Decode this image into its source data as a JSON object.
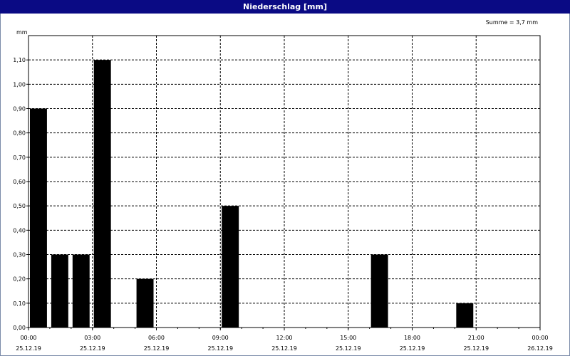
{
  "window": {
    "title": "Niederschlag [mm]"
  },
  "chart_data": {
    "type": "bar",
    "title": "Niederschlag [mm]",
    "ylabel": "mm",
    "annotation": "Summe = 3,7 mm",
    "ylim": [
      0,
      1.2
    ],
    "y_ticks": [
      {
        "value": 0.0,
        "label": "0,00"
      },
      {
        "value": 0.1,
        "label": "0,10"
      },
      {
        "value": 0.2,
        "label": "0,20"
      },
      {
        "value": 0.3,
        "label": "0,30"
      },
      {
        "value": 0.4,
        "label": "0,40"
      },
      {
        "value": 0.5,
        "label": "0,50"
      },
      {
        "value": 0.6,
        "label": "0,60"
      },
      {
        "value": 0.7,
        "label": "0,70"
      },
      {
        "value": 0.8,
        "label": "0,80"
      },
      {
        "value": 0.9,
        "label": "0,90"
      },
      {
        "value": 1.0,
        "label": "1,00"
      },
      {
        "value": 1.1,
        "label": "1,10"
      }
    ],
    "xlim_hours": [
      0,
      24
    ],
    "x_ticks": [
      {
        "hour": 0,
        "time": "00:00",
        "date": "25.12.19"
      },
      {
        "hour": 3,
        "time": "03:00",
        "date": "25.12.19"
      },
      {
        "hour": 6,
        "time": "06:00",
        "date": "25.12.19"
      },
      {
        "hour": 9,
        "time": "09:00",
        "date": "25.12.19"
      },
      {
        "hour": 12,
        "time": "12:00",
        "date": "25.12.19"
      },
      {
        "hour": 15,
        "time": "15:00",
        "date": "25.12.19"
      },
      {
        "hour": 18,
        "time": "18:00",
        "date": "25.12.19"
      },
      {
        "hour": 21,
        "time": "21:00",
        "date": "25.12.19"
      },
      {
        "hour": 24,
        "time": "00:00",
        "date": "26.12.19"
      }
    ],
    "bars": [
      {
        "hour": 0,
        "value": 0.9
      },
      {
        "hour": 1,
        "value": 0.3
      },
      {
        "hour": 2,
        "value": 0.3
      },
      {
        "hour": 3,
        "value": 1.1
      },
      {
        "hour": 5,
        "value": 0.2
      },
      {
        "hour": 9,
        "value": 0.5
      },
      {
        "hour": 16,
        "value": 0.3
      },
      {
        "hour": 20,
        "value": 0.1
      }
    ],
    "grid": true,
    "colors": {
      "bar": "#000000",
      "grid": "#000000",
      "titlebar": "#0a0a84"
    }
  }
}
